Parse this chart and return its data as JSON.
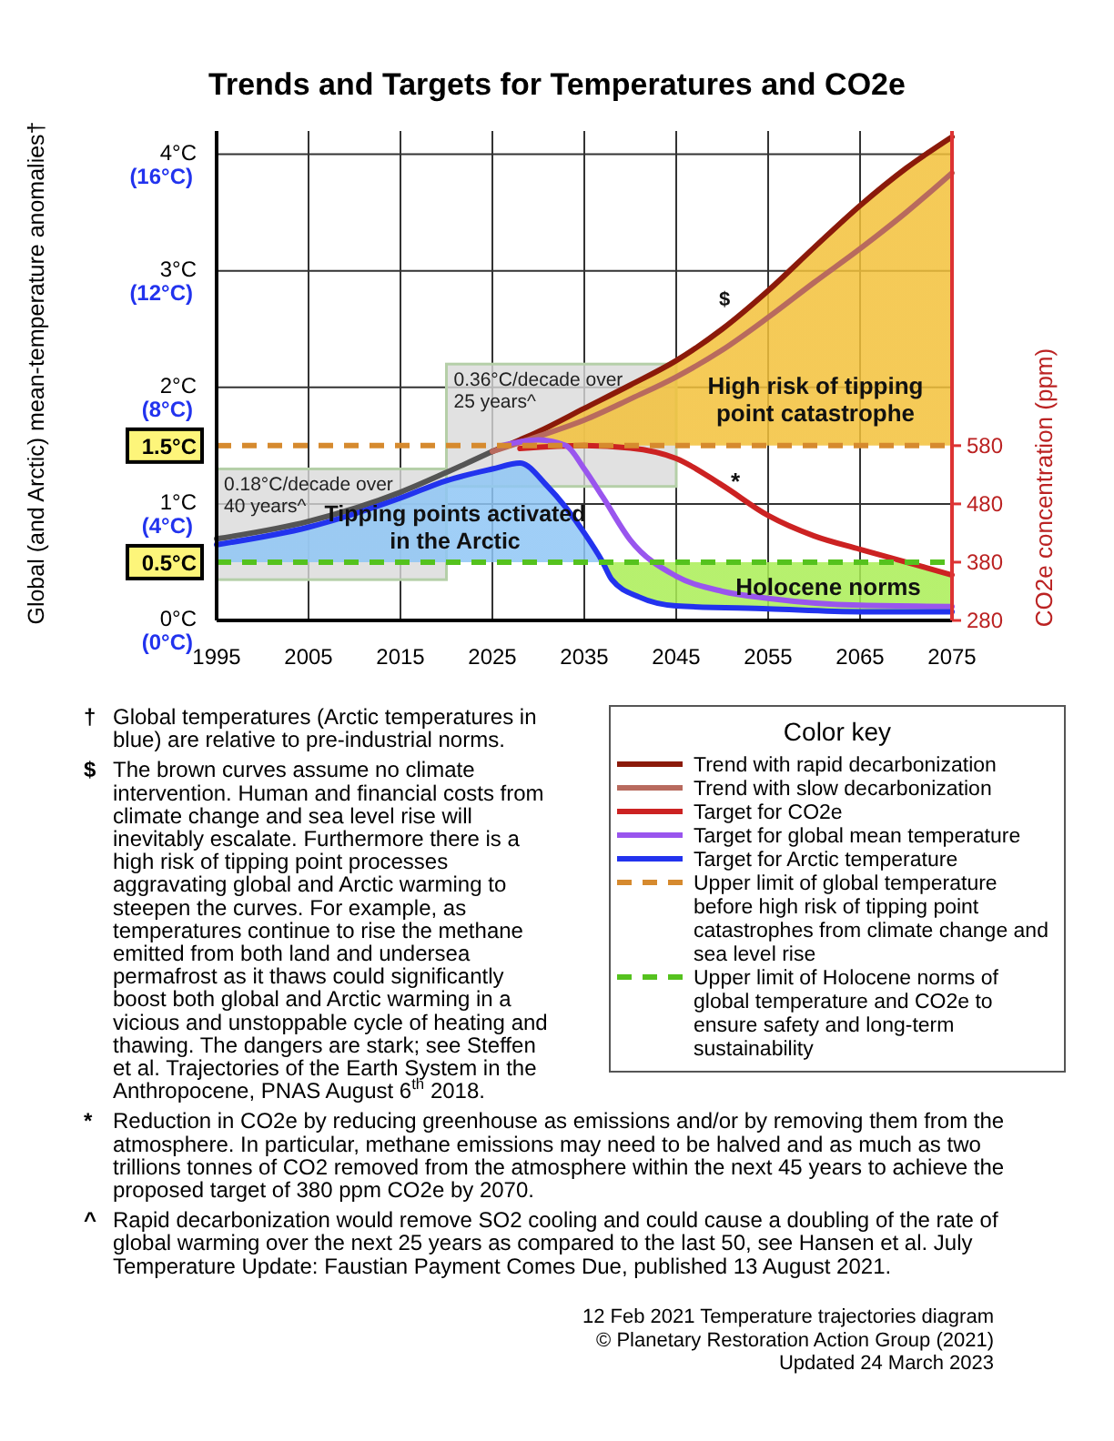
{
  "chart_data": {
    "type": "line",
    "title": "Trends and Targets for Temperatures and CO2e",
    "ylabel": "Global (and Arctic) mean-temperature anomalies†",
    "y2label": "CO2e concentration (ppm)",
    "legend_title": "Color key",
    "legend": "bottom right",
    "grid": true,
    "xlim": [
      1995,
      2075
    ],
    "xticks": [
      1995,
      2005,
      2015,
      2025,
      2035,
      2045,
      2055,
      2065,
      2075
    ],
    "ylim": [
      0,
      4.2
    ],
    "yticks": [
      {
        "value": 0,
        "label": "0°C"
      },
      {
        "value": 0.5,
        "label": "0.5°C"
      },
      {
        "value": 1,
        "label": "1°C"
      },
      {
        "value": 1.5,
        "label": "1.5°C"
      },
      {
        "value": 2,
        "label": "2°C"
      },
      {
        "value": 3,
        "label": "3°C"
      },
      {
        "value": 4,
        "label": "4°C"
      }
    ],
    "y3lim": [
      0,
      16.8
    ],
    "y3ticks": [
      {
        "value": 0,
        "label": "(0°C)"
      },
      {
        "value": 4,
        "label": "(4°C)"
      },
      {
        "value": 8,
        "label": "(8°C)"
      },
      {
        "value": 12,
        "label": "(12°C)"
      },
      {
        "value": 16,
        "label": "(16°C)"
      }
    ],
    "y2lim": [
      280,
      1120
    ],
    "y2ticks": [
      280,
      380,
      480,
      580
    ],
    "bands": [
      {
        "axis": "x",
        "from": 1995,
        "to": 2020,
        "label": "0.18°C/decade over 40 years^",
        "color": "#d9d9d9"
      },
      {
        "axis": "x",
        "from": 2020,
        "to": 2045,
        "label": "0.36°C/decade over 25 years^",
        "color": "#d9d9d9"
      }
    ],
    "series": [
      {
        "color": "#555555",
        "x": [
          1995,
          2005,
          2015,
          2020,
          2025
        ],
        "values": [
          0.7,
          0.85,
          1.1,
          1.27,
          1.45
        ]
      },
      {
        "name": "Trend with rapid decarbonization",
        "color": "#8b1a0a",
        "x": [
          2025,
          2028,
          2030,
          2035,
          2040,
          2045,
          2050,
          2055,
          2060,
          2065,
          2070,
          2075
        ],
        "values": [
          1.45,
          1.55,
          1.62,
          1.82,
          2.02,
          2.23,
          2.5,
          2.83,
          3.2,
          3.56,
          3.88,
          4.15
        ],
        "lower": [
          null,
          1.5,
          1.5,
          1.5,
          1.5,
          1.5,
          1.5,
          1.5,
          1.5,
          1.5,
          1.5,
          1.5
        ],
        "upper": [
          null,
          1.55,
          1.62,
          1.82,
          2.02,
          2.23,
          2.5,
          2.83,
          3.2,
          3.56,
          3.88,
          4.15
        ]
      },
      {
        "name": "Trend with slow decarbonization",
        "color": "#b86a5e",
        "x": [
          2025,
          2030,
          2035,
          2040,
          2045,
          2050,
          2055,
          2060,
          2065,
          2070,
          2075
        ],
        "values": [
          1.45,
          1.58,
          1.72,
          1.9,
          2.09,
          2.32,
          2.6,
          2.9,
          3.19,
          3.5,
          3.84
        ]
      },
      {
        "name": "Target for CO2e",
        "color": "#cc2222",
        "axis": "y2",
        "x": [
          2028,
          2035,
          2040,
          2045,
          2050,
          2055,
          2060,
          2065,
          2070,
          2075
        ],
        "values": [
          575,
          580,
          576,
          558,
          512,
          460,
          425,
          402,
          380,
          358
        ]
      },
      {
        "name": "Target for global mean temperature",
        "color": "#9955ee",
        "x": [
          2026,
          2030,
          2033,
          2035,
          2037,
          2040,
          2045,
          2050,
          2055,
          2065,
          2075
        ],
        "values": [
          1.5,
          1.55,
          1.5,
          1.3,
          1.06,
          0.69,
          0.38,
          0.25,
          0.19,
          0.13,
          0.12
        ]
      },
      {
        "name": "Target for Arctic temperature",
        "color": "#2233ee",
        "axis": "y3",
        "x": [
          1995,
          2005,
          2015,
          2020,
          2025,
          2028,
          2031,
          2035,
          2037,
          2038,
          2041,
          2045,
          2055,
          2065,
          2070,
          2075
        ],
        "values": [
          2.6,
          3.2,
          4.2,
          4.8,
          5.2,
          5.4,
          4.6,
          3.0,
          2.0,
          1.4,
          0.8,
          0.5,
          0.4,
          0.3,
          0.3,
          0.3
        ],
        "lower": [
          2,
          2,
          2,
          2,
          2,
          2,
          2,
          2,
          2,
          1.4,
          0.8,
          0.5,
          0.4,
          0.3,
          0.3,
          0.3
        ],
        "upper": [
          2.6,
          3.2,
          4.2,
          4.8,
          5.2,
          5.4,
          4.6,
          3.0,
          2.0,
          2,
          2,
          2,
          2,
          2,
          2,
          1.56
        ]
      },
      {
        "name": "Upper limit of global temperature before high risk of tipping point catastrophes from climate change and sea level rise",
        "color": "#d68a2e",
        "line_style": "dashed",
        "x": [
          1995,
          2075
        ],
        "values": [
          1.5,
          1.5
        ]
      },
      {
        "name": "Upper limit of Holocene norms of global temperature and CO2e to ensure safety and long-term sustainability",
        "color": "#55c21e",
        "line_style": "dashed",
        "x": [
          1995,
          2075
        ],
        "values": [
          0.5,
          0.5
        ]
      }
    ],
    "annotations": [
      "Tipping points activated in the Arctic",
      "High risk of tipping point catastrophe",
      "Holocene norms",
      "$",
      "*",
      "† Global temperatures (Arctic temperatures in blue) are relative to pre-industrial norms.",
      "$ The brown curves assume no climate intervention.  Human and financial costs from climate change and sea level rise will inevitably escalate. Furthermore there is a high risk of tipping point processes aggravating global and Arctic warming to steepen the curves.  For example, as temperatures continue to rise the methane emitted from both land and undersea permafrost as it thaws could significantly boost both global and Arctic warming in a vicious and unstoppable cycle of heating and thawing.  The dangers are stark; see Steffen et al. Trajectories of the Earth System in the Anthropocene, PNAS August 6$^{th}$ 2018.",
      "* Reduction in CO2e by reducing greenhouse as emissions and/or by removing them from the atmosphere. In particular, methane emissions may need to be halved and as much as two trillions tonnes of CO2 removed from the atmosphere within the next 45 years to achieve the proposed target of 380 ppm CO2e by 2070.",
      "^ Rapid decarbonization would remove SO2 cooling and could cause a doubling of the rate of global warming over the next 25 years as compared to the last 50, see Hansen et al. July Temperature Update: Faustian Payment Comes Due, published 13 August 2021.",
      "12 Feb 2021 Temperature trajectories diagram",
      "© Planetary Restoration Action Group (2021)",
      "Updated 24 March 2023"
    ]
  }
}
